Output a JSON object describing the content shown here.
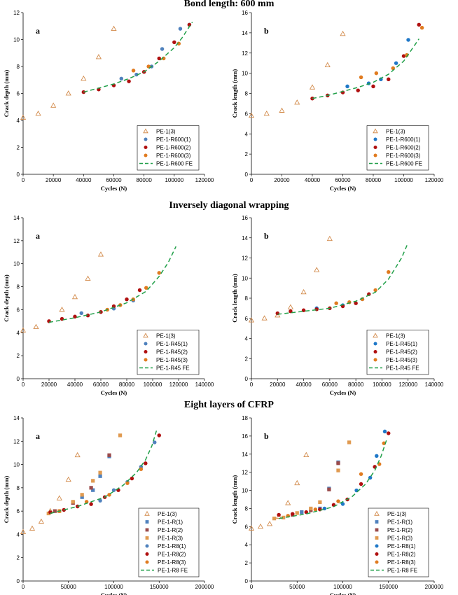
{
  "sections": [
    {
      "title": "Bond length: 600 mm"
    },
    {
      "title": "Inversely diagonal wrapping"
    },
    {
      "title": "Eight layers of CFRP"
    }
  ],
  "colors": {
    "triangle": "#d28a4a",
    "blue": "#4f81bd",
    "blue_dark": "#1f78c8",
    "red": "#b01010",
    "orange": "#e07b20",
    "mauve": "#9b4a4a",
    "tan": "#e09a50",
    "fe": "#22a04a"
  },
  "chart_data": [
    {
      "type": "scatter",
      "panel": "a",
      "xlabel": "Cycles (N)",
      "ylabel": "Crack depth (mm)",
      "xlim": [
        0,
        120000
      ],
      "xticks": [
        0,
        20000,
        40000,
        60000,
        80000,
        100000,
        120000
      ],
      "ylim": [
        0,
        12
      ],
      "yticks": [
        0,
        2,
        4,
        6,
        8,
        10,
        12
      ],
      "legend_position": "bottom-right",
      "series": [
        {
          "name": "PE-1(3)",
          "marker": "triangle",
          "color": "#d28a4a",
          "x": [
            0,
            10000,
            20000,
            30000,
            40000,
            50000,
            60000
          ],
          "y": [
            4.2,
            4.5,
            5.1,
            6.0,
            7.1,
            8.7,
            10.8
          ]
        },
        {
          "name": "PE-1-R600(1)",
          "marker": "circle",
          "color": "#4f81bd",
          "x": [
            65000,
            75000,
            85000,
            92000,
            104000,
            110000
          ],
          "y": [
            7.1,
            7.4,
            8.0,
            9.3,
            10.8,
            11.1
          ]
        },
        {
          "name": "PE-1-R600(2)",
          "marker": "circle",
          "color": "#b01010",
          "x": [
            40000,
            50000,
            60000,
            70000,
            80000,
            90000,
            100000,
            110000
          ],
          "y": [
            6.1,
            6.3,
            6.6,
            6.9,
            7.6,
            8.6,
            9.8,
            11.1
          ]
        },
        {
          "name": "PE-1-R600(3)",
          "marker": "circle",
          "color": "#e07b20",
          "x": [
            73000,
            83000,
            93000,
            103000
          ],
          "y": [
            7.7,
            8.0,
            8.6,
            9.7
          ]
        },
        {
          "name": "PE-1-R600 FE",
          "marker": "dashed-line",
          "color": "#22a04a",
          "x": [
            40000,
            50000,
            60000,
            70000,
            80000,
            90000,
            100000,
            105000,
            112000
          ],
          "y": [
            6.1,
            6.4,
            6.7,
            7.1,
            7.6,
            8.4,
            9.4,
            10.1,
            11.3
          ]
        }
      ]
    },
    {
      "type": "scatter",
      "panel": "b",
      "xlabel": "Cycles (N)",
      "ylabel": "Crack length (mm)",
      "xlim": [
        0,
        120000
      ],
      "xticks": [
        0,
        20000,
        40000,
        60000,
        80000,
        100000,
        120000
      ],
      "ylim": [
        0,
        16
      ],
      "yticks": [
        0,
        2,
        4,
        6,
        8,
        10,
        12,
        14,
        16
      ],
      "legend_position": "bottom-right",
      "series": [
        {
          "name": "PE-1(3)",
          "marker": "triangle",
          "color": "#d28a4a",
          "x": [
            0,
            10000,
            20000,
            30000,
            40000,
            50000,
            60000
          ],
          "y": [
            5.8,
            6.0,
            6.3,
            7.1,
            8.6,
            10.8,
            13.9
          ]
        },
        {
          "name": "PE-1-R600(1)",
          "marker": "circle",
          "color": "#1f78c8",
          "x": [
            63000,
            77000,
            85000,
            95000,
            103000
          ],
          "y": [
            8.7,
            9.0,
            9.4,
            11.0,
            13.3
          ]
        },
        {
          "name": "PE-1-R600(2)",
          "marker": "circle",
          "color": "#b01010",
          "x": [
            40000,
            50000,
            60000,
            70000,
            80000,
            90000,
            100000,
            110000
          ],
          "y": [
            7.5,
            7.8,
            8.1,
            8.3,
            8.7,
            9.4,
            11.7,
            14.8
          ]
        },
        {
          "name": "PE-1-R600(3)",
          "marker": "circle",
          "color": "#e07b20",
          "x": [
            72000,
            82000,
            93000,
            102000,
            112000
          ],
          "y": [
            9.6,
            10.0,
            10.5,
            11.8,
            14.5
          ]
        },
        {
          "name": "PE-1-R600 FE",
          "marker": "dashed-line",
          "color": "#22a04a",
          "x": [
            40000,
            50000,
            60000,
            70000,
            80000,
            90000,
            100000,
            110000
          ],
          "y": [
            7.5,
            7.8,
            8.2,
            8.6,
            9.1,
            9.9,
            11.2,
            13.4
          ]
        }
      ]
    },
    {
      "type": "scatter",
      "panel": "a",
      "xlabel": "Cycles (N)",
      "ylabel": "Crack depth (mm)",
      "xlim": [
        0,
        140000
      ],
      "xticks": [
        0,
        20000,
        40000,
        60000,
        80000,
        100000,
        120000,
        140000
      ],
      "ylim": [
        0,
        14
      ],
      "yticks": [
        0,
        2,
        4,
        6,
        8,
        10,
        12,
        14
      ],
      "legend_position": "bottom-right",
      "series": [
        {
          "name": "PE-1(3)",
          "marker": "triangle",
          "color": "#d28a4a",
          "x": [
            0,
            10000,
            30000,
            40000,
            50000,
            60000
          ],
          "y": [
            4.2,
            4.5,
            6.0,
            7.1,
            8.7,
            10.8
          ]
        },
        {
          "name": "PE-1-R45(1)",
          "marker": "circle",
          "color": "#4f81bd",
          "x": [
            45000,
            70000,
            85000
          ],
          "y": [
            5.7,
            6.1,
            6.8
          ]
        },
        {
          "name": "PE-1-R45(2)",
          "marker": "circle",
          "color": "#b01010",
          "x": [
            20000,
            30000,
            40000,
            50000,
            60000,
            70000,
            80000,
            90000
          ],
          "y": [
            5.0,
            5.2,
            5.4,
            5.5,
            5.8,
            6.3,
            6.9,
            7.7
          ]
        },
        {
          "name": "PE-1-R45(3)",
          "marker": "circle",
          "color": "#e07b20",
          "x": [
            65000,
            75000,
            85000,
            95000,
            105000
          ],
          "y": [
            6.0,
            6.4,
            6.9,
            7.9,
            9.2
          ]
        },
        {
          "name": "PE-1-R45 FE",
          "marker": "dashed-line",
          "color": "#22a04a",
          "x": [
            20000,
            40000,
            60000,
            80000,
            95000,
            105000,
            112000,
            118000
          ],
          "y": [
            4.9,
            5.3,
            5.8,
            6.6,
            7.6,
            8.9,
            10.1,
            11.5
          ]
        }
      ]
    },
    {
      "type": "scatter",
      "panel": "b",
      "xlabel": "Cycles (N)",
      "ylabel": "Crack length (mm)",
      "xlim": [
        0,
        140000
      ],
      "xticks": [
        0,
        20000,
        40000,
        60000,
        80000,
        100000,
        120000,
        140000
      ],
      "ylim": [
        0,
        16
      ],
      "yticks": [
        0,
        2,
        4,
        6,
        8,
        10,
        12,
        14,
        16
      ],
      "legend_position": "bottom-right",
      "series": [
        {
          "name": "PE-1(3)",
          "marker": "triangle",
          "color": "#d28a4a",
          "x": [
            0,
            10000,
            20000,
            30000,
            40000,
            50000,
            60000
          ],
          "y": [
            5.8,
            6.0,
            6.3,
            7.1,
            8.6,
            10.8,
            13.9
          ]
        },
        {
          "name": "PE-1-R45(1)",
          "marker": "circle",
          "color": "#1f78c8",
          "x": [
            50000,
            70000,
            85000
          ],
          "y": [
            7.0,
            7.3,
            7.9
          ]
        },
        {
          "name": "PE-1-R45(2)",
          "marker": "circle",
          "color": "#b01010",
          "x": [
            20000,
            30000,
            40000,
            50000,
            60000,
            70000,
            80000,
            90000
          ],
          "y": [
            6.5,
            6.7,
            6.8,
            6.9,
            7.0,
            7.2,
            7.5,
            8.4
          ]
        },
        {
          "name": "PE-1-R45(3)",
          "marker": "circle",
          "color": "#e07b20",
          "x": [
            65000,
            75000,
            85000,
            95000,
            105000
          ],
          "y": [
            7.5,
            7.6,
            7.9,
            8.8,
            10.6
          ]
        },
        {
          "name": "PE-1-R45 FE",
          "marker": "dashed-line",
          "color": "#22a04a",
          "x": [
            20000,
            40000,
            60000,
            80000,
            95000,
            105000,
            115000,
            120000
          ],
          "y": [
            6.4,
            6.7,
            7.0,
            7.7,
            8.6,
            9.9,
            12.0,
            13.5
          ]
        }
      ]
    },
    {
      "type": "scatter",
      "panel": "a",
      "xlabel": "Cycles (N)",
      "ylabel": "Crack depth (mm)",
      "xlim": [
        0,
        200000
      ],
      "xticks": [
        0,
        50000,
        100000,
        150000,
        200000
      ],
      "ylim": [
        0,
        14
      ],
      "yticks": [
        0,
        2,
        4,
        6,
        8,
        10,
        12,
        14
      ],
      "legend_position": "bottom-right",
      "series": [
        {
          "name": "PE-1(3)",
          "marker": "triangle",
          "color": "#d28a4a",
          "x": [
            0,
            10000,
            20000,
            30000,
            40000,
            50000,
            60000
          ],
          "y": [
            4.2,
            4.5,
            5.1,
            6.0,
            7.1,
            8.7,
            10.8
          ]
        },
        {
          "name": "PE-1-R(1)",
          "marker": "square",
          "color": "#4f81bd",
          "x": [
            65000,
            77000,
            85000,
            95000
          ],
          "y": [
            7.2,
            7.8,
            9.0,
            10.7
          ]
        },
        {
          "name": "PE-1-R(2)",
          "marker": "square",
          "color": "#9b4a4a",
          "x": [
            35000,
            55000,
            75000,
            95000
          ],
          "y": [
            6.0,
            6.7,
            8.0,
            10.8
          ]
        },
        {
          "name": "PE-1-R(3)",
          "marker": "square",
          "color": "#e09a50",
          "x": [
            28000,
            40000,
            55000,
            65000,
            77000,
            85000,
            107000
          ],
          "y": [
            5.8,
            6.0,
            6.8,
            7.4,
            8.6,
            9.3,
            12.5
          ]
        },
        {
          "name": "PE-1-R8(1)",
          "marker": "circle",
          "color": "#4f81bd",
          "x": [
            85000,
            100000,
            115000,
            130000,
            145000
          ],
          "y": [
            6.9,
            7.8,
            8.5,
            9.8,
            11.9
          ]
        },
        {
          "name": "PE-1-R8(2)",
          "marker": "circle",
          "color": "#b01010",
          "x": [
            30000,
            45000,
            60000,
            75000,
            90000,
            105000,
            120000,
            135000,
            150000
          ],
          "y": [
            5.9,
            6.1,
            6.4,
            6.6,
            7.2,
            7.8,
            8.8,
            10.1,
            12.5
          ]
        },
        {
          "name": "PE-1-R8(3)",
          "marker": "circle",
          "color": "#e07b20",
          "x": [
            40000,
            70000,
            95000,
            115000,
            130000
          ],
          "y": [
            6.0,
            6.8,
            7.4,
            8.4,
            9.6
          ]
        },
        {
          "name": "PE-1-R8 FE",
          "marker": "dashed-line",
          "color": "#22a04a",
          "x": [
            30000,
            60000,
            90000,
            110000,
            125000,
            135000,
            142000,
            147000
          ],
          "y": [
            5.8,
            6.4,
            7.2,
            8.2,
            9.3,
            10.4,
            11.6,
            12.9
          ]
        }
      ]
    },
    {
      "type": "scatter",
      "panel": "b",
      "xlabel": "Cycles (N)",
      "ylabel": "Crack length (mm)",
      "xlim": [
        0,
        200000
      ],
      "xticks": [
        0,
        50000,
        100000,
        150000,
        200000
      ],
      "ylim": [
        0,
        18
      ],
      "yticks": [
        0,
        2,
        4,
        6,
        8,
        10,
        12,
        14,
        16,
        18
      ],
      "legend_position": "bottom-right",
      "series": [
        {
          "name": "PE-1(3)",
          "marker": "triangle",
          "color": "#d28a4a",
          "x": [
            0,
            10000,
            20000,
            30000,
            40000,
            50000,
            60000
          ],
          "y": [
            5.8,
            6.0,
            6.3,
            7.1,
            8.6,
            10.8,
            13.9
          ]
        },
        {
          "name": "PE-1-R(1)",
          "marker": "square",
          "color": "#4f81bd",
          "x": [
            55000,
            75000,
            85000,
            95000
          ],
          "y": [
            7.6,
            8.0,
            10.2,
            13.1
          ]
        },
        {
          "name": "PE-1-R(2)",
          "marker": "square",
          "color": "#9b4a4a",
          "x": [
            45000,
            65000,
            85000,
            95000
          ],
          "y": [
            7.3,
            7.8,
            10.1,
            13.0
          ]
        },
        {
          "name": "PE-1-R(3)",
          "marker": "square",
          "color": "#e09a50",
          "x": [
            25000,
            35000,
            50000,
            65000,
            75000,
            95000,
            107000
          ],
          "y": [
            6.9,
            7.0,
            7.5,
            8.0,
            8.7,
            12.2,
            15.3
          ]
        },
        {
          "name": "PE-1-R8(1)",
          "marker": "circle",
          "color": "#1f78c8",
          "x": [
            80000,
            100000,
            115000,
            130000,
            137000,
            146000
          ],
          "y": [
            8.0,
            8.5,
            10.0,
            11.4,
            13.8,
            16.5
          ]
        },
        {
          "name": "PE-1-R8(2)",
          "marker": "circle",
          "color": "#b01010",
          "x": [
            30000,
            45000,
            60000,
            75000,
            90000,
            105000,
            120000,
            135000,
            150000
          ],
          "y": [
            7.3,
            7.4,
            7.6,
            7.9,
            8.4,
            9.0,
            10.7,
            12.6,
            16.3
          ]
        },
        {
          "name": "PE-1-R8(3)",
          "marker": "circle",
          "color": "#e07b20",
          "x": [
            40000,
            70000,
            95000,
            120000,
            140000,
            145000
          ],
          "y": [
            7.2,
            7.9,
            8.8,
            11.8,
            12.9,
            15.2
          ]
        },
        {
          "name": "PE-1-R8 FE",
          "marker": "dashed-line",
          "color": "#22a04a",
          "x": [
            30000,
            60000,
            90000,
            110000,
            125000,
            135000,
            142000,
            148000
          ],
          "y": [
            6.9,
            7.4,
            8.2,
            9.3,
            10.7,
            12.2,
            13.8,
            15.6
          ]
        }
      ]
    }
  ]
}
